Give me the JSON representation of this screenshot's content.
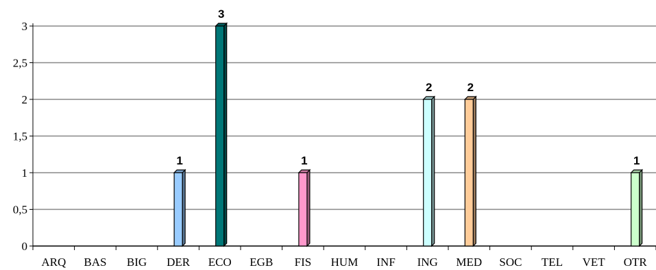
{
  "chart_data": {
    "type": "bar",
    "categories": [
      "ARQ",
      "BAS",
      "BIG",
      "DER",
      "ECO",
      "EGB",
      "FIS",
      "HUM",
      "INF",
      "ING",
      "MED",
      "SOC",
      "TEL",
      "VET",
      "OTR"
    ],
    "values": [
      0,
      0,
      0,
      1,
      3,
      0,
      1,
      0,
      0,
      2,
      2,
      0,
      0,
      0,
      1
    ],
    "colors": [
      "#9999ff",
      "#9999ff",
      "#9999ff",
      "#99ccff",
      "#007777",
      "#9999ff",
      "#ff99cc",
      "#9999ff",
      "#9999ff",
      "#ccffff",
      "#ffcc99",
      "#9999ff",
      "#9999ff",
      "#9999ff",
      "#ccffcc"
    ],
    "data_labels": [
      "",
      "",
      "",
      "1",
      "3",
      "",
      "1",
      "",
      "",
      "2",
      "2",
      "",
      "",
      "",
      "1"
    ],
    "y_ticks": [
      "0",
      "0,5",
      "1",
      "1,5",
      "2",
      "2,5",
      "3"
    ],
    "ylim": [
      0,
      3
    ],
    "grid": true,
    "title": "",
    "xlabel": "",
    "ylabel": ""
  }
}
